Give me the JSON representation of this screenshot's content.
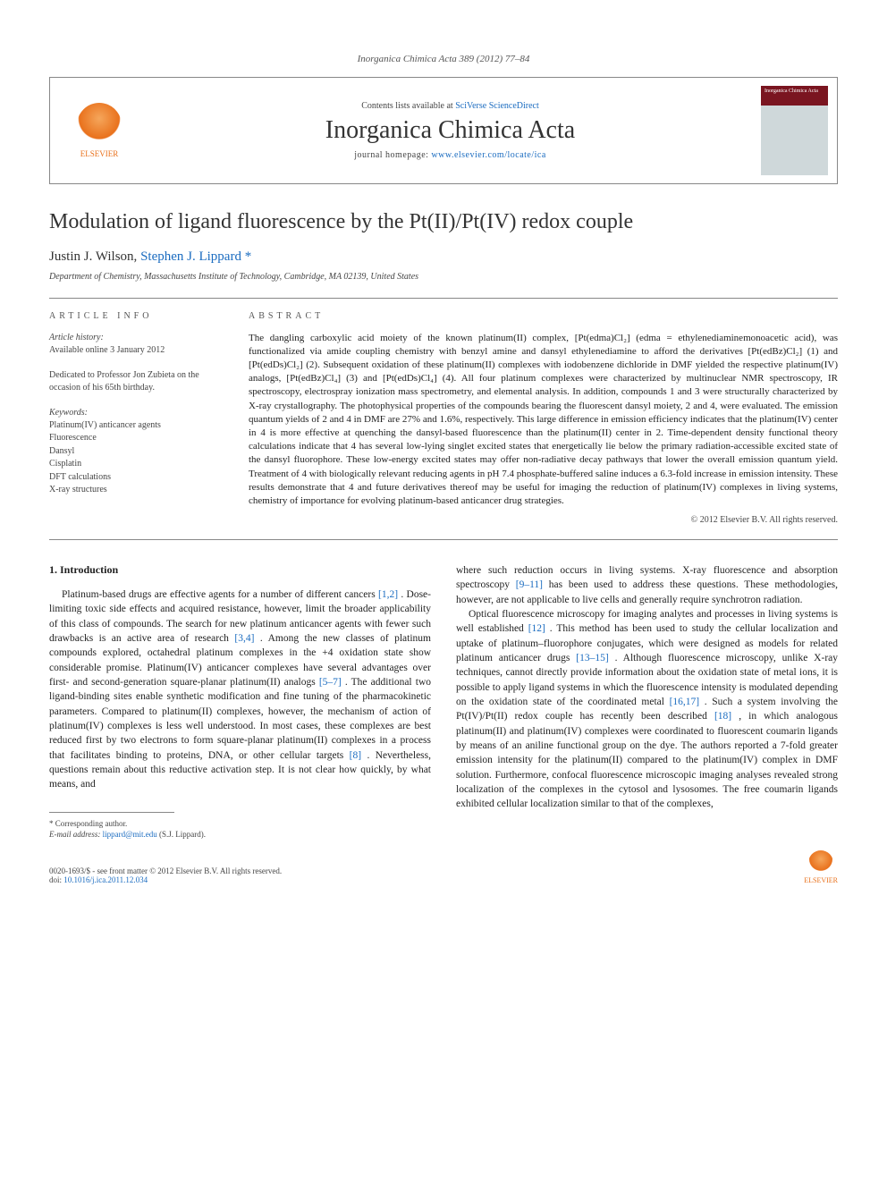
{
  "journal_ref": "Inorganica Chimica Acta 389 (2012) 77–84",
  "header": {
    "contents_prefix": "Contents lists available at ",
    "contents_link": "SciVerse ScienceDirect",
    "journal_title": "Inorganica Chimica Acta",
    "homepage_prefix": "journal homepage: ",
    "homepage_link": "www.elsevier.com/locate/ica",
    "publisher_name": "ELSEVIER",
    "cover_title": "Inorganica Chimica Acta"
  },
  "article": {
    "title": "Modulation of ligand fluorescence by the Pt(II)/Pt(IV) redox couple",
    "authors_plain": "Justin J. Wilson, ",
    "author_corresponding": "Stephen J. Lippard",
    "corresponding_marker": "*",
    "affiliation": "Department of Chemistry, Massachusetts Institute of Technology, Cambridge, MA 02139, United States"
  },
  "info": {
    "heading": "article info",
    "history_label": "Article history:",
    "history_line": "Available online 3 January 2012",
    "dedication": "Dedicated to Professor Jon Zubieta on the occasion of his 65th birthday.",
    "keywords_label": "Keywords:",
    "keywords": [
      "Platinum(IV) anticancer agents",
      "Fluorescence",
      "Dansyl",
      "Cisplatin",
      "DFT calculations",
      "X-ray structures"
    ]
  },
  "abstract": {
    "heading": "abstract",
    "text": "The dangling carboxylic acid moiety of the known platinum(II) complex, [Pt(edma)Cl₂] (edma = ethylenediaminemonoacetic acid), was functionalized via amide coupling chemistry with benzyl amine and dansyl ethylenediamine to afford the derivatives [Pt(edBz)Cl₂] (1) and [Pt(edDs)Cl₂] (2). Subsequent oxidation of these platinum(II) complexes with iodobenzene dichloride in DMF yielded the respective platinum(IV) analogs, [Pt(edBz)Cl₄] (3) and [Pt(edDs)Cl₄] (4). All four platinum complexes were characterized by multinuclear NMR spectroscopy, IR spectroscopy, electrospray ionization mass spectrometry, and elemental analysis. In addition, compounds 1 and 3 were structurally characterized by X-ray crystallography. The photophysical properties of the compounds bearing the fluorescent dansyl moiety, 2 and 4, were evaluated. The emission quantum yields of 2 and 4 in DMF are 27% and 1.6%, respectively. This large difference in emission efficiency indicates that the platinum(IV) center in 4 is more effective at quenching the dansyl-based fluorescence than the platinum(II) center in 2. Time-dependent density functional theory calculations indicate that 4 has several low-lying singlet excited states that energetically lie below the primary radiation-accessible excited state of the dansyl fluorophore. These low-energy excited states may offer non-radiative decay pathways that lower the overall emission quantum yield. Treatment of 4 with biologically relevant reducing agents in pH 7.4 phosphate-buffered saline induces a 6.3-fold increase in emission intensity. These results demonstrate that 4 and future derivatives thereof may be useful for imaging the reduction of platinum(IV) complexes in living systems, chemistry of importance for evolving platinum-based anticancer drug strategies.",
    "copyright": "© 2012 Elsevier B.V. All rights reserved."
  },
  "body": {
    "intro_heading": "1. Introduction",
    "col1_p1a": "Platinum-based drugs are effective agents for a number of different cancers ",
    "col1_ref1": "[1,2]",
    "col1_p1b": ". Dose-limiting toxic side effects and acquired resistance, however, limit the broader applicability of this class of compounds. The search for new platinum anticancer agents with fewer such drawbacks is an active area of research ",
    "col1_ref2": "[3,4]",
    "col1_p1c": ". Among the new classes of platinum compounds explored, octahedral platinum complexes in the +4 oxidation state show considerable promise. Platinum(IV) anticancer complexes have several advantages over first- and second-generation square-planar platinum(II) analogs ",
    "col1_ref3": "[5–7]",
    "col1_p1d": ". The additional two ligand-binding sites enable synthetic modification and fine tuning of the pharmacokinetic parameters. Compared to platinum(II) complexes, however, the mechanism of action of platinum(IV) complexes is less well understood. In most cases, these complexes are best reduced first by two electrons to form square-planar platinum(II) complexes in a process that facilitates binding to proteins, DNA, or other cellular targets ",
    "col1_ref4": "[8]",
    "col1_p1e": ". Nevertheless, questions remain about this reductive activation step. It is not clear how quickly, by what means, and",
    "col2_p1a": "where such reduction occurs in living systems. X-ray fluorescence and absorption spectroscopy ",
    "col2_ref1": "[9–11]",
    "col2_p1b": " has been used to address these questions. These methodologies, however, are not applicable to live cells and generally require synchrotron radiation.",
    "col2_p2a": "Optical fluorescence microscopy for imaging analytes and processes in living systems is well established ",
    "col2_ref2": "[12]",
    "col2_p2b": ". This method has been used to study the cellular localization and uptake of platinum–fluorophore conjugates, which were designed as models for related platinum anticancer drugs ",
    "col2_ref3": "[13–15]",
    "col2_p2c": ". Although fluorescence microscopy, unlike X-ray techniques, cannot directly provide information about the oxidation state of metal ions, it is possible to apply ligand systems in which the fluorescence intensity is modulated depending on the oxidation state of the coordinated metal ",
    "col2_ref4": "[16,17]",
    "col2_p2d": ". Such a system involving the Pt(IV)/Pt(II) redox couple has recently been described ",
    "col2_ref5": "[18]",
    "col2_p2e": ", in which analogous platinum(II) and platinum(IV) complexes were coordinated to fluorescent coumarin ligands by means of an aniline functional group on the dye. The authors reported a 7-fold greater emission intensity for the platinum(II) compared to the platinum(IV) complex in DMF solution. Furthermore, confocal fluorescence microscopic imaging analyses revealed strong localization of the complexes in the cytosol and lysosomes. The free coumarin ligands exhibited cellular localization similar to that of the complexes,"
  },
  "footnote": {
    "corresponding_label": "* Corresponding author.",
    "email_label": "E-mail address: ",
    "email": "lippard@mit.edu",
    "email_suffix": " (S.J. Lippard)."
  },
  "footer": {
    "issn_line": "0020-1693/$ - see front matter © 2012 Elsevier B.V. All rights reserved.",
    "doi_label": "doi:",
    "doi": "10.1016/j.ica.2011.12.034",
    "publisher_name": "ELSEVIER"
  },
  "colors": {
    "link": "#1b6cc0",
    "elsevier_orange": "#e9711c",
    "border": "#888888",
    "text": "#222222",
    "muted": "#555555"
  }
}
